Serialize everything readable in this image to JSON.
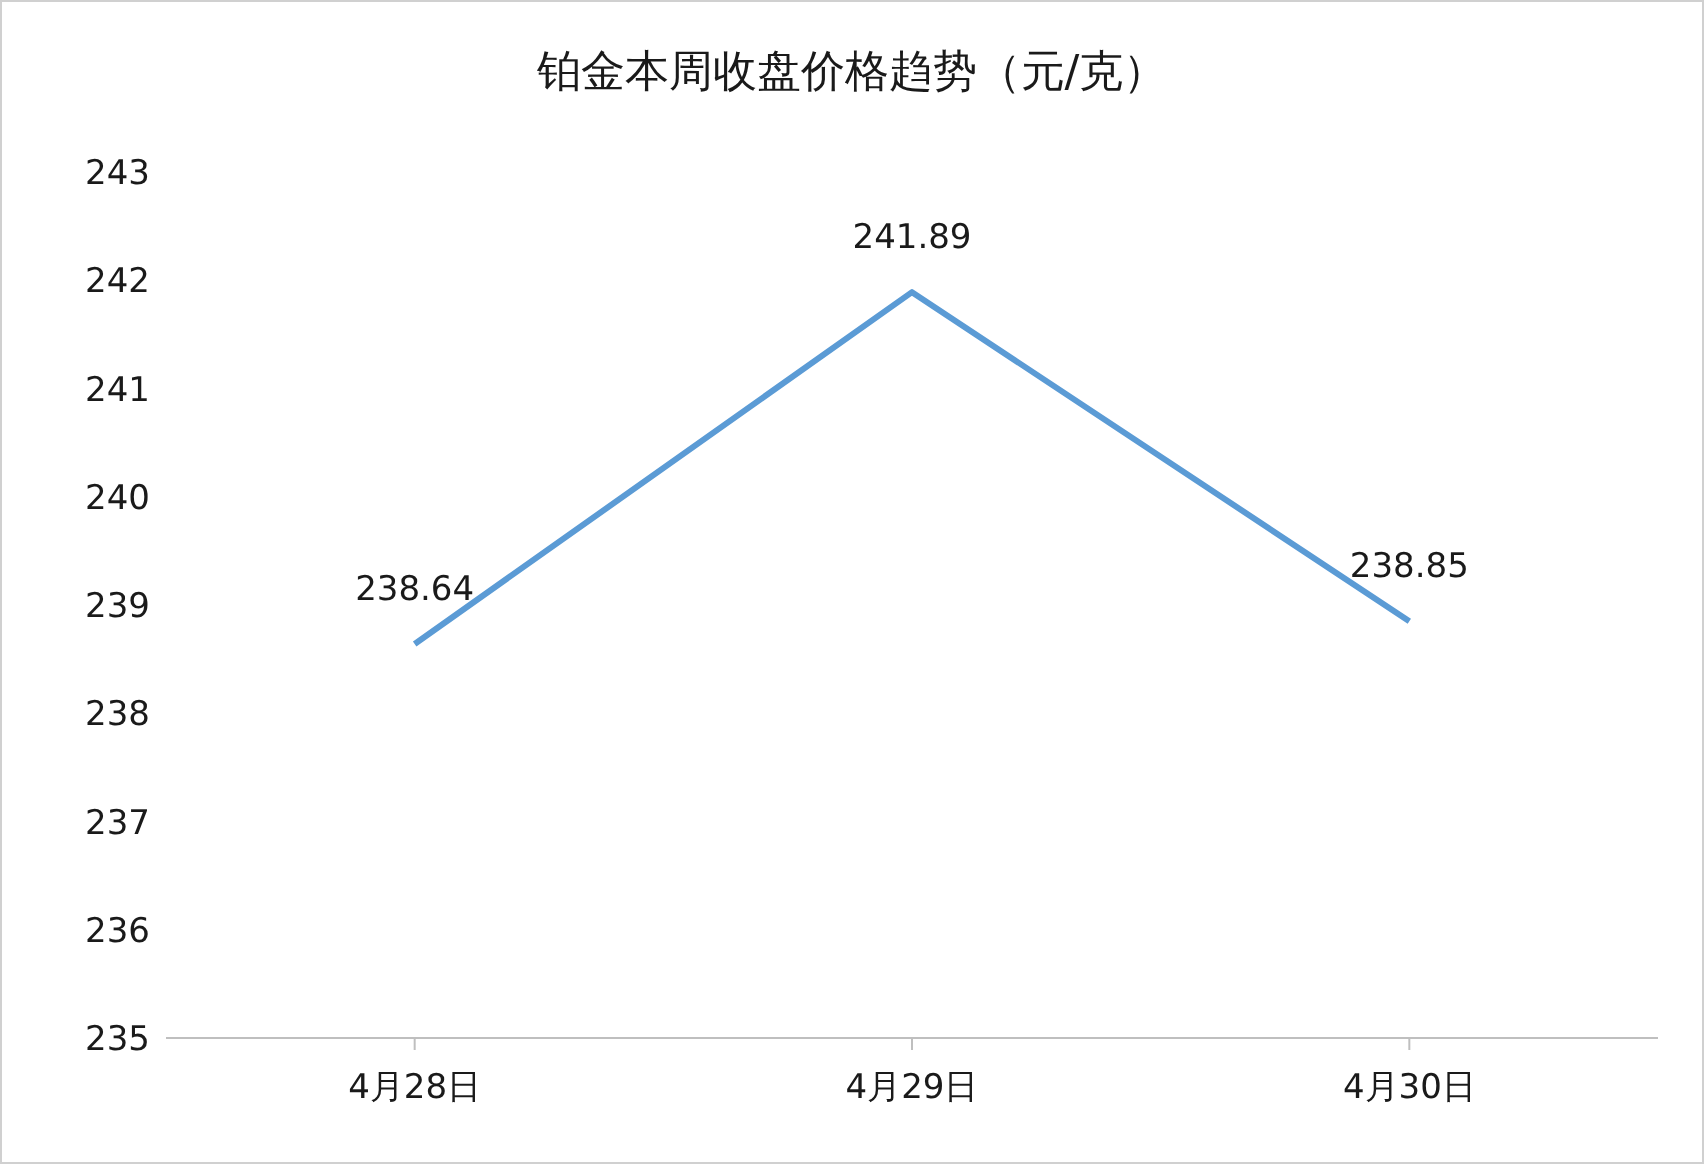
{
  "chart_data": {
    "type": "line",
    "title": "铂金本周收盘价格趋势（元/克）",
    "categories": [
      "4月28日",
      "4月29日",
      "4月30日"
    ],
    "series": [
      {
        "color": "#5b9bd5",
        "values": [
          238.64,
          241.89,
          238.85
        ]
      }
    ],
    "ylim": [
      235,
      243
    ],
    "yticks": [
      235,
      236,
      237,
      238,
      239,
      240,
      241,
      242,
      243
    ],
    "grid": false,
    "legend": false,
    "marker": "none",
    "line_style": "solid",
    "data_labels": true
  }
}
